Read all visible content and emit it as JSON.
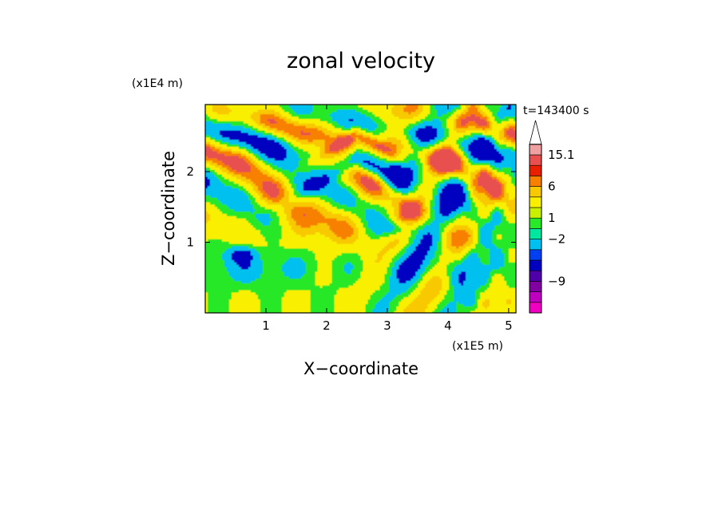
{
  "chart_data": {
    "type": "heatmap",
    "title": "zonal velocity",
    "xlabel": "X−coordinate",
    "ylabel": "Z−coordinate",
    "x_scale_label": "(x1E5 m)",
    "y_scale_label": "(x1E4 m)",
    "time_label": "t=143400 s",
    "xlim": [
      0.0,
      5.12
    ],
    "ylim": [
      0.0,
      2.95
    ],
    "x_ticks": [
      {
        "value": 1,
        "label": "1"
      },
      {
        "value": 2,
        "label": "2"
      },
      {
        "value": 3,
        "label": "3"
      },
      {
        "value": 4,
        "label": "4"
      },
      {
        "value": 5,
        "label": "5"
      }
    ],
    "y_ticks": [
      {
        "value": 1,
        "label": "1"
      },
      {
        "value": 2,
        "label": "2"
      }
    ],
    "colorbar": {
      "levels": [
        {
          "color": "#f000c0"
        },
        {
          "color": "#c000c0"
        },
        {
          "color": "#8000a0"
        },
        {
          "color": "#5000a8"
        },
        {
          "color": "#0000c0"
        },
        {
          "color": "#0040f0"
        },
        {
          "color": "#00c0f0"
        },
        {
          "color": "#00e8a0"
        },
        {
          "color": "#28e828"
        },
        {
          "color": "#c8f000"
        },
        {
          "color": "#f8f000"
        },
        {
          "color": "#f8c800"
        },
        {
          "color": "#f88000"
        },
        {
          "color": "#e82000"
        },
        {
          "color": "#e85050"
        },
        {
          "color": "#f0a0a0"
        }
      ],
      "overflow_color": "#ffffff",
      "labels": [
        {
          "text": "15.1",
          "at_boundary": 15
        },
        {
          "text": "6",
          "at_boundary": 12
        },
        {
          "text": "1",
          "at_boundary": 9
        },
        {
          "text": "−2",
          "at_boundary": 7
        },
        {
          "text": "−9",
          "at_boundary": 3
        }
      ]
    },
    "field_palette": [
      "#0000c0",
      "#00c0f0",
      "#28e828",
      "#f8f000",
      "#f8c800",
      "#f88000",
      "#e85050"
    ]
  }
}
